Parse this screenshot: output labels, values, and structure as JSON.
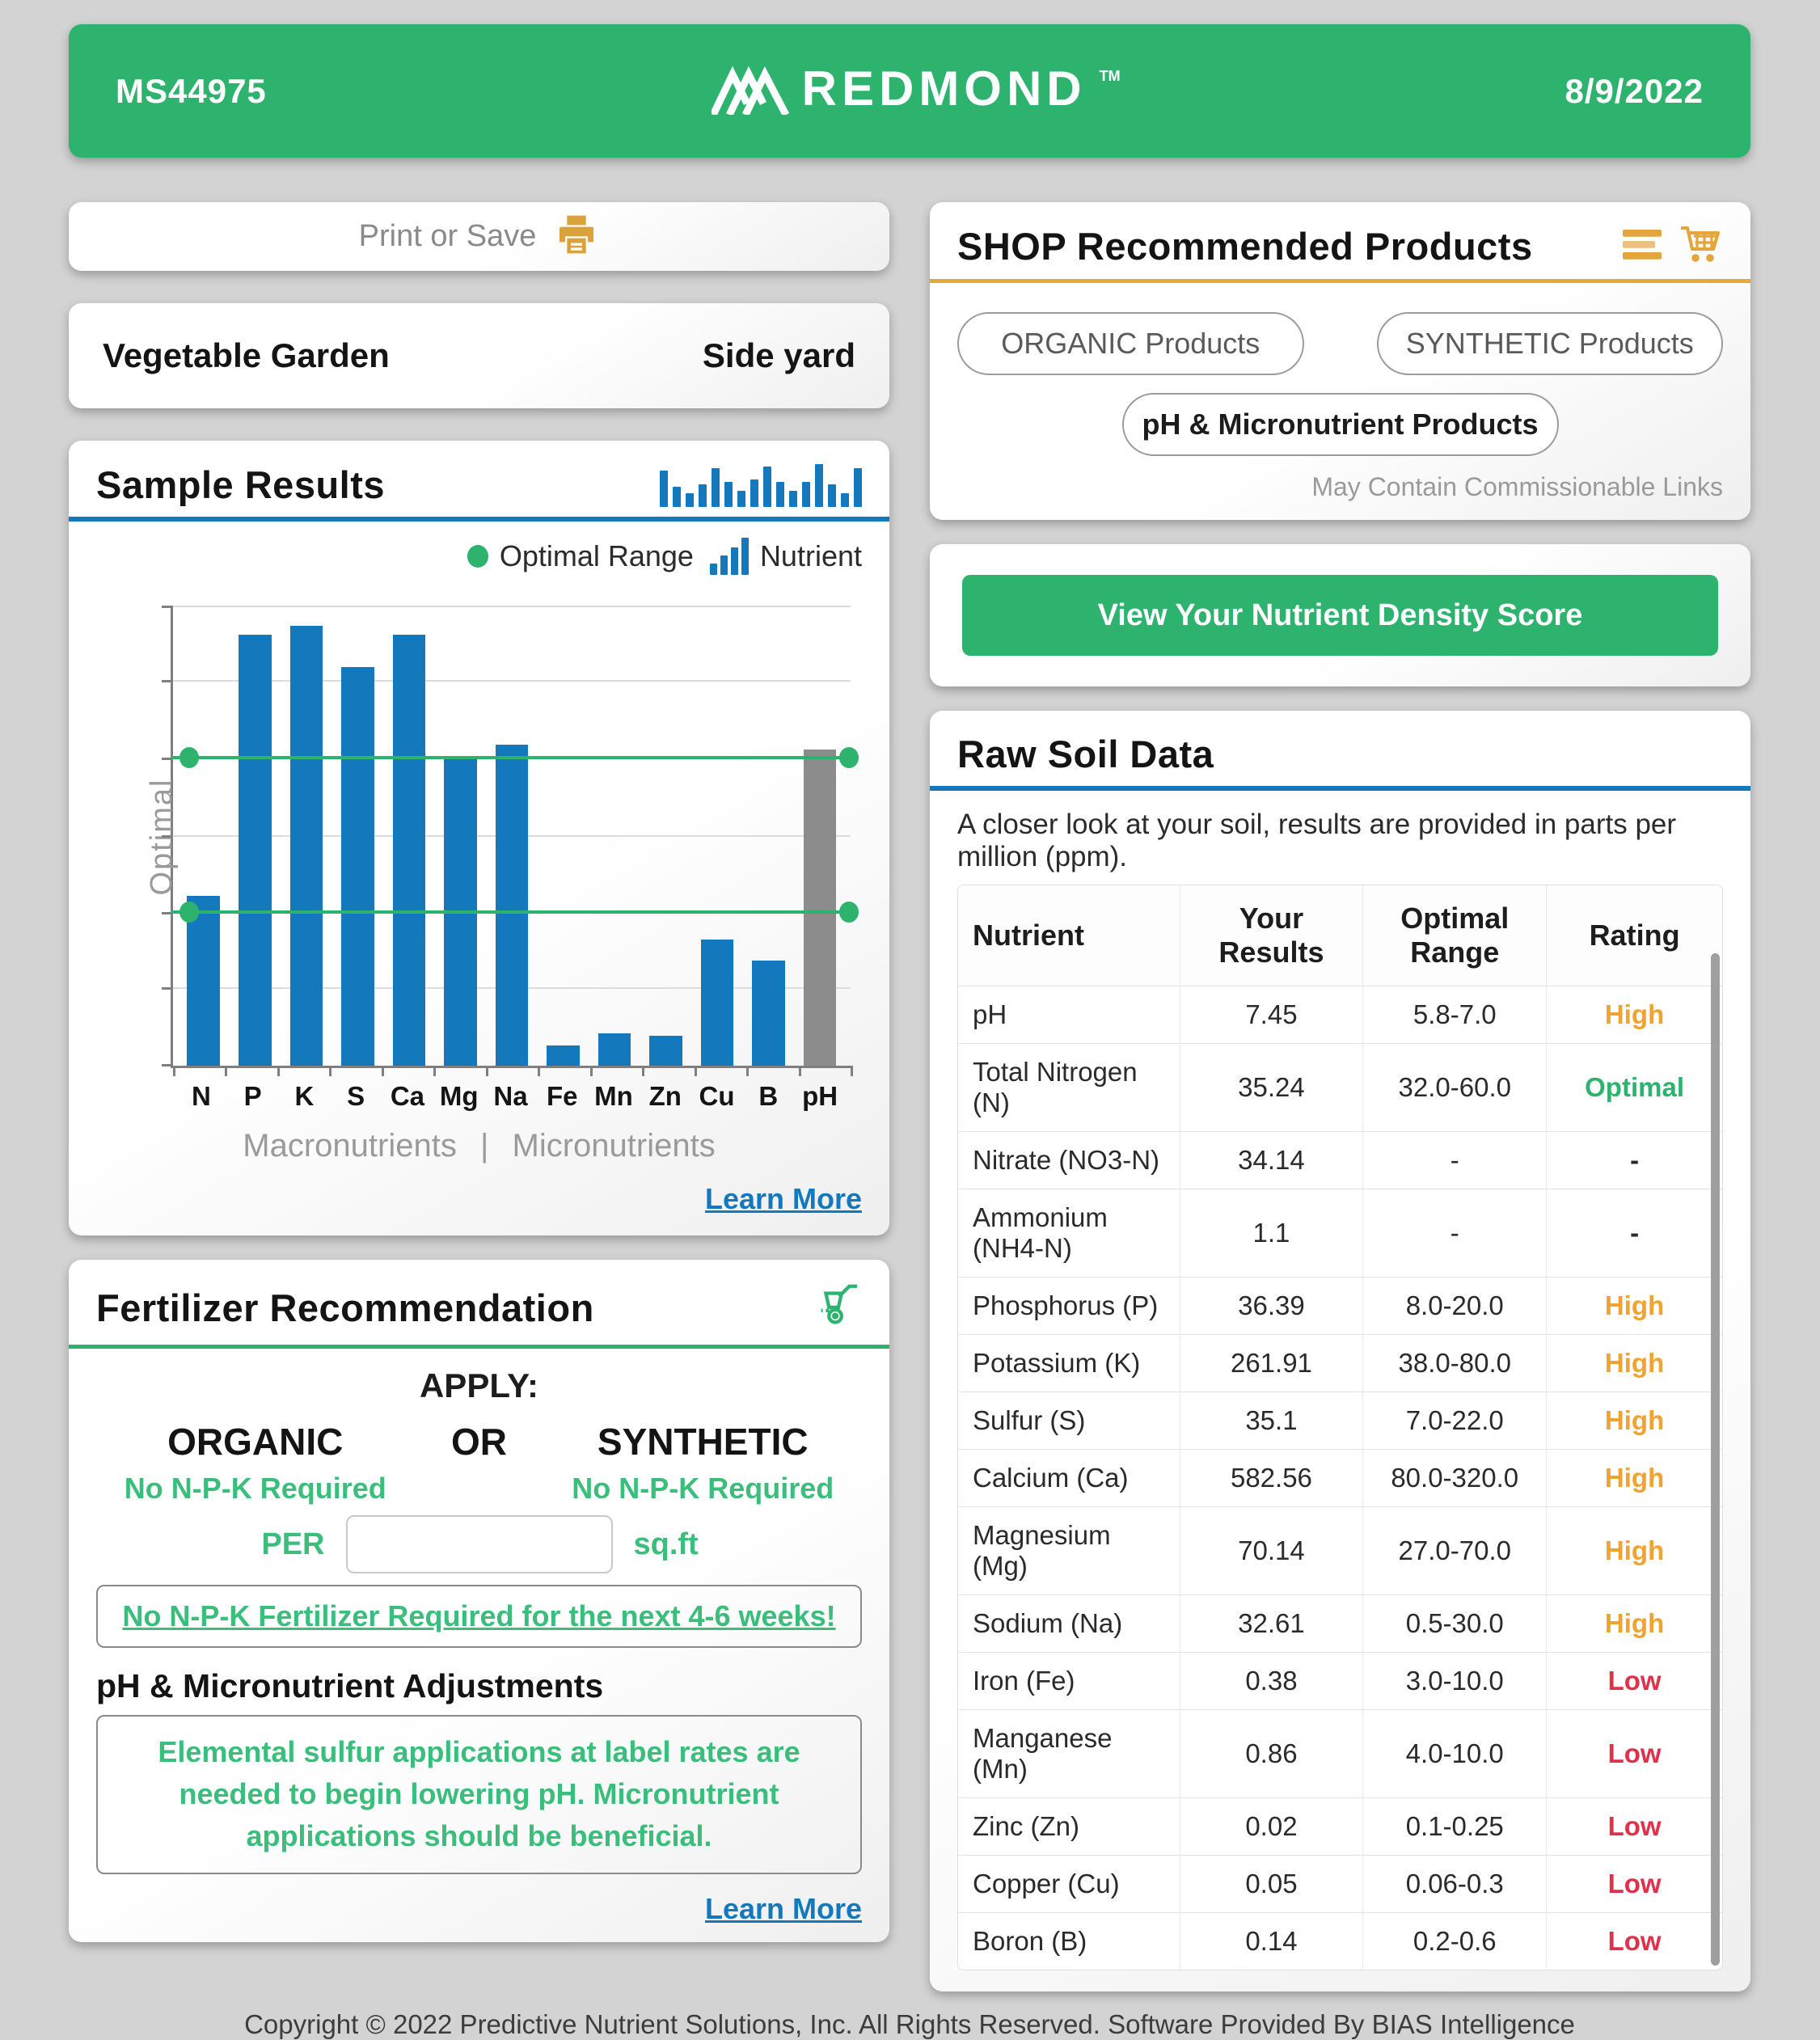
{
  "header": {
    "sample_id": "MS44975",
    "brand": "REDMOND",
    "brand_tm": "TM",
    "date": "8/9/2022"
  },
  "print_card": {
    "label": "Print or Save"
  },
  "sample_info": {
    "name": "Vegetable Garden",
    "location": "Side yard"
  },
  "sample_results": {
    "title": "Sample Results",
    "legend_optimal": "Optimal Range",
    "legend_nutrient": "Nutrient",
    "y_axis_label": "Optimal",
    "group_macro": "Macronutrients",
    "group_sep": "|",
    "group_micro": "Micronutrients",
    "learn_more": "Learn More"
  },
  "chart_data": {
    "type": "bar",
    "title": "Sample Results",
    "categories": [
      "N",
      "P",
      "K",
      "S",
      "Ca",
      "Mg",
      "Na",
      "Fe",
      "Mn",
      "Zn",
      "Cu",
      "B",
      "pH"
    ],
    "series": [
      {
        "name": "Nutrient (relative level, fraction of plot height)",
        "values": [
          0.37,
          0.94,
          0.96,
          0.87,
          0.94,
          0.67,
          0.7,
          0.045,
          0.07,
          0.065,
          0.275,
          0.23,
          0.69
        ]
      }
    ],
    "ylabel": "Optimal",
    "y_axis_numeric": false,
    "optimal_band_lines": [
      0.332,
      0.669
    ],
    "gridlines": [
      0.168,
      0.5,
      0.837,
      1.0
    ],
    "legend": [
      "Optimal Range",
      "Nutrient"
    ],
    "legend_position": "top-right",
    "bar_color_default": "#1478bd",
    "bar_color_ph": "#8c8c8c",
    "optimal_line_color": "#2db36e",
    "x_groups": [
      {
        "label": "Macronutrients",
        "categories": [
          "N",
          "P",
          "K",
          "S",
          "Ca",
          "Mg",
          "Na"
        ]
      },
      {
        "label": "Micronutrients",
        "categories": [
          "Fe",
          "Mn",
          "Zn",
          "Cu",
          "B"
        ]
      }
    ]
  },
  "fertilizer": {
    "title": "Fertilizer Recommendation",
    "apply": "APPLY:",
    "organic": "ORGANIC",
    "or": "OR",
    "synthetic": "SYNTHETIC",
    "organic_note": "No N-P-K Required",
    "synthetic_note": "No N-P-K Required",
    "per": "PER",
    "input_value": "",
    "sqft": "sq.ft",
    "banner": "No N-P-K Fertilizer Required for the next 4-6 weeks!",
    "ph_section_title": "pH & Micronutrient Adjustments",
    "ph_note": "Elemental sulfur applications at label rates are needed to begin lowering pH. Micronutrient applications should be beneficial.",
    "learn_more": "Learn More"
  },
  "shop": {
    "title": "SHOP Recommended Products",
    "buttons": [
      "ORGANIC Products",
      "SYNTHETIC Products",
      "pH & Micronutrient Products"
    ],
    "disclaimer": "May Contain Commissionable Links"
  },
  "density": {
    "button_label": "View Your Nutrient Density Score"
  },
  "raw_soil": {
    "title": "Raw Soil Data",
    "subtitle": "A closer look at your soil, results are provided in parts per million (ppm).",
    "columns": [
      "Nutrient",
      "Your Results",
      "Optimal Range",
      "Rating"
    ],
    "rows": [
      {
        "nutrient": "pH",
        "result": "7.45",
        "range": "5.8-7.0",
        "rating": "High",
        "rating_key": "high"
      },
      {
        "nutrient": "Total Nitrogen (N)",
        "result": "35.24",
        "range": "32.0-60.0",
        "rating": "Optimal",
        "rating_key": "optimal"
      },
      {
        "nutrient": "Nitrate (NO3-N)",
        "result": "34.14",
        "range": "-",
        "rating": "-",
        "rating_key": "na"
      },
      {
        "nutrient": "Ammonium (NH4-N)",
        "result": "1.1",
        "range": "-",
        "rating": "-",
        "rating_key": "na"
      },
      {
        "nutrient": "Phosphorus (P)",
        "result": "36.39",
        "range": "8.0-20.0",
        "rating": "High",
        "rating_key": "high"
      },
      {
        "nutrient": "Potassium (K)",
        "result": "261.91",
        "range": "38.0-80.0",
        "rating": "High",
        "rating_key": "high"
      },
      {
        "nutrient": "Sulfur (S)",
        "result": "35.1",
        "range": "7.0-22.0",
        "rating": "High",
        "rating_key": "high"
      },
      {
        "nutrient": "Calcium (Ca)",
        "result": "582.56",
        "range": "80.0-320.0",
        "rating": "High",
        "rating_key": "high"
      },
      {
        "nutrient": "Magnesium (Mg)",
        "result": "70.14",
        "range": "27.0-70.0",
        "rating": "High",
        "rating_key": "high"
      },
      {
        "nutrient": "Sodium (Na)",
        "result": "32.61",
        "range": "0.5-30.0",
        "rating": "High",
        "rating_key": "high"
      },
      {
        "nutrient": "Iron (Fe)",
        "result": "0.38",
        "range": "3.0-10.0",
        "rating": "Low",
        "rating_key": "low"
      },
      {
        "nutrient": "Manganese (Mn)",
        "result": "0.86",
        "range": "4.0-10.0",
        "rating": "Low",
        "rating_key": "low"
      },
      {
        "nutrient": "Zinc (Zn)",
        "result": "0.02",
        "range": "0.1-0.25",
        "rating": "Low",
        "rating_key": "low"
      },
      {
        "nutrient": "Copper (Cu)",
        "result": "0.05",
        "range": "0.06-0.3",
        "rating": "Low",
        "rating_key": "low"
      },
      {
        "nutrient": "Boron (B)",
        "result": "0.14",
        "range": "0.2-0.6",
        "rating": "Low",
        "rating_key": "low"
      }
    ]
  },
  "footer": "Copyright © 2022 Predictive Nutrient Solutions, Inc. All Rights Reserved. Software Provided By BIAS Intelligence",
  "colors": {
    "brand_green": "#2db36e",
    "chart_blue": "#1478bd",
    "gold": "#e2a63c",
    "rating_high": "#f0a32e",
    "rating_optimal": "#2db36e",
    "rating_low": "#e0314b",
    "ph_bar_gray": "#8c8c8c"
  }
}
